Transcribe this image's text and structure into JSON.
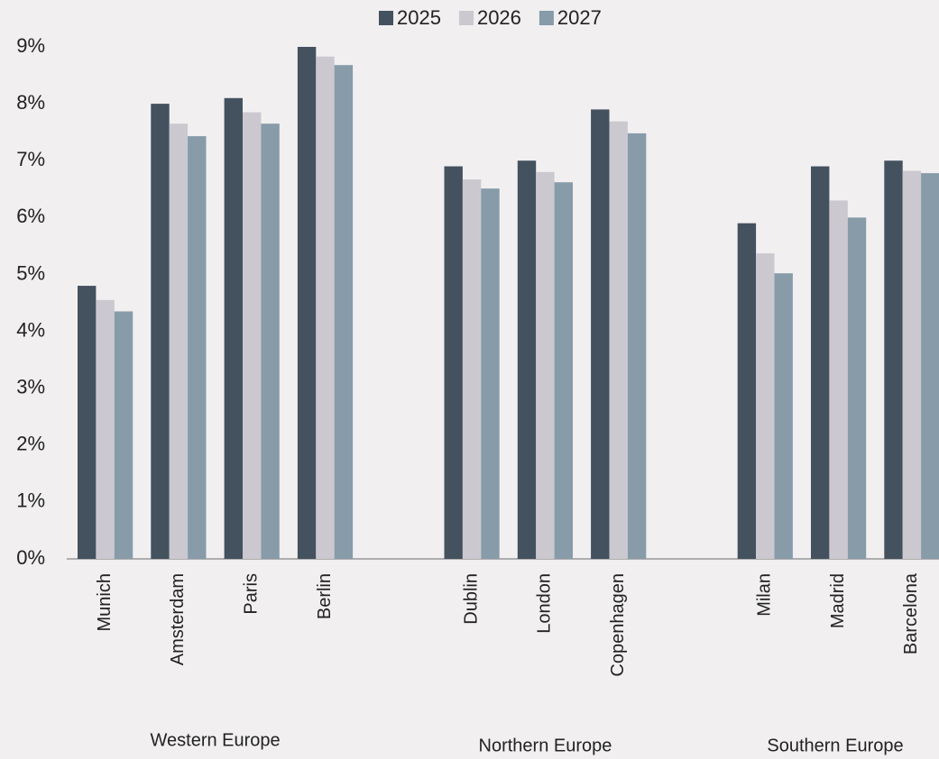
{
  "chart_data": {
    "type": "bar",
    "categories": [
      "Munich",
      "Amsterdam",
      "Paris",
      "Berlin",
      null,
      "Dublin",
      "London",
      "Copenhagen",
      null,
      "Milan",
      "Madrid",
      "Barcelona"
    ],
    "group_labels": [
      "Western Europe",
      "Northern Europe",
      "Southern Europe"
    ],
    "series": [
      {
        "name": "2025",
        "color": "#44515f",
        "values": [
          4.8,
          8.0,
          8.1,
          9.0,
          null,
          6.9,
          7.0,
          7.9,
          null,
          5.9,
          6.9,
          7.0
        ]
      },
      {
        "name": "2026",
        "color": "#cbc8cf",
        "values": [
          4.55,
          7.65,
          7.85,
          8.83,
          null,
          6.67,
          6.8,
          7.69,
          null,
          5.37,
          6.3,
          6.82
        ]
      },
      {
        "name": "2027",
        "color": "#879ba9",
        "values": [
          4.35,
          7.43,
          7.65,
          8.68,
          null,
          6.51,
          6.62,
          7.48,
          null,
          5.02,
          6.0,
          6.78
        ]
      }
    ],
    "ylim": [
      0,
      9
    ],
    "yticks": [
      {
        "value": 0,
        "label": "0%"
      },
      {
        "value": 1,
        "label": "1%"
      },
      {
        "value": 2,
        "label": "2%"
      },
      {
        "value": 3,
        "label": "3%"
      },
      {
        "value": 4,
        "label": "4%"
      },
      {
        "value": 5,
        "label": "5%"
      },
      {
        "value": 6,
        "label": "6%"
      },
      {
        "value": 7,
        "label": "7%"
      },
      {
        "value": 8,
        "label": "8%"
      },
      {
        "value": 9,
        "label": "9%"
      }
    ],
    "grid": false,
    "legend": "top"
  }
}
